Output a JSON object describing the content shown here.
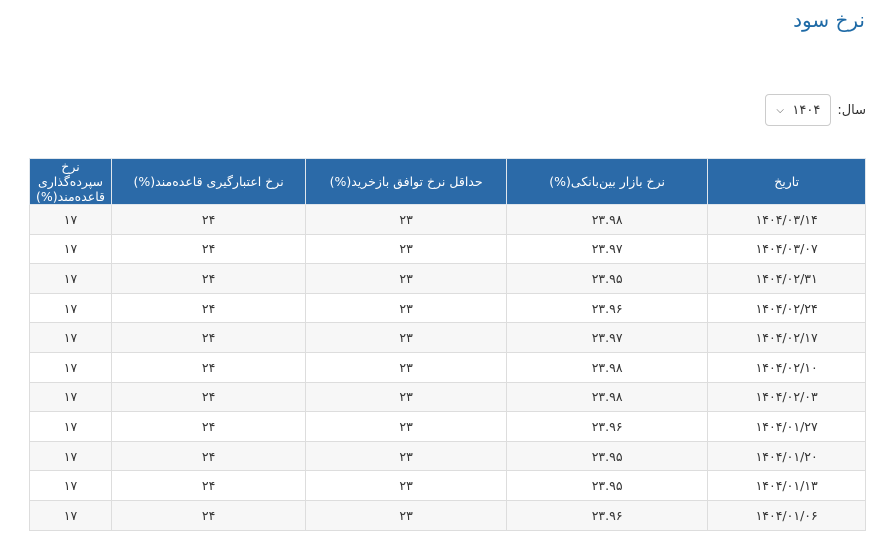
{
  "page": {
    "title": "نرخ سود"
  },
  "filter": {
    "label": "سال:",
    "year": "۱۴۰۴"
  },
  "table": {
    "headers": [
      "تاریخ",
      "نرخ بازار بین‌بانکی(%)",
      "حداقل نرخ توافق بازخرید(%)",
      "نرخ اعتبارگیری قاعده‌مند(%)",
      "نرخ سپرده‌گذاری قاعده‌مند(%)"
    ],
    "rows": [
      [
        "۱۴۰۴/۰۳/۱۴",
        "۲۳.۹۸",
        "۲۳",
        "۲۴",
        "۱۷"
      ],
      [
        "۱۴۰۴/۰۳/۰۷",
        "۲۳.۹۷",
        "۲۳",
        "۲۴",
        "۱۷"
      ],
      [
        "۱۴۰۴/۰۲/۳۱",
        "۲۳.۹۵",
        "۲۳",
        "۲۴",
        "۱۷"
      ],
      [
        "۱۴۰۴/۰۲/۲۴",
        "۲۳.۹۶",
        "۲۳",
        "۲۴",
        "۱۷"
      ],
      [
        "۱۴۰۴/۰۲/۱۷",
        "۲۳.۹۷",
        "۲۳",
        "۲۴",
        "۱۷"
      ],
      [
        "۱۴۰۴/۰۲/۱۰",
        "۲۳.۹۸",
        "۲۳",
        "۲۴",
        "۱۷"
      ],
      [
        "۱۴۰۴/۰۲/۰۳",
        "۲۳.۹۸",
        "۲۳",
        "۲۴",
        "۱۷"
      ],
      [
        "۱۴۰۴/۰۱/۲۷",
        "۲۳.۹۶",
        "۲۳",
        "۲۴",
        "۱۷"
      ],
      [
        "۱۴۰۴/۰۱/۲۰",
        "۲۳.۹۵",
        "۲۳",
        "۲۴",
        "۱۷"
      ],
      [
        "۱۴۰۴/۰۱/۱۳",
        "۲۳.۹۵",
        "۲۳",
        "۲۴",
        "۱۷"
      ],
      [
        "۱۴۰۴/۰۱/۰۶",
        "۲۳.۹۶",
        "۲۳",
        "۲۴",
        "۱۷"
      ]
    ]
  }
}
